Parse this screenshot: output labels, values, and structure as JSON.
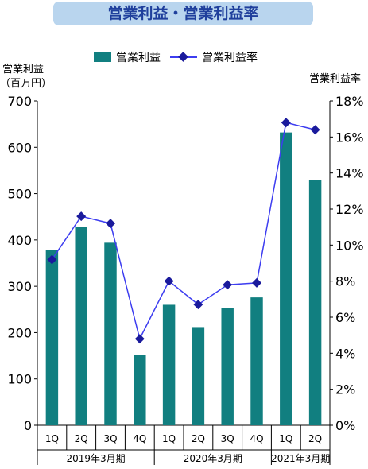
{
  "title": "営業利益・営業利益率",
  "left_axis_label": [
    "営業利益",
    "（百万円）"
  ],
  "right_axis_label": "営業利益率",
  "legend": {
    "bar": "営業利益",
    "line": "営業利益率"
  },
  "colors": {
    "bar": "#117f80",
    "line": "#3d3df0",
    "marker": "#1a1a9c",
    "title_bg": "#b9d5ee",
    "title_text": "#1f3f9c"
  },
  "chart_data": {
    "type": "bar",
    "categories": [
      "1Q",
      "2Q",
      "3Q",
      "4Q",
      "1Q",
      "2Q",
      "3Q",
      "4Q",
      "1Q",
      "2Q"
    ],
    "groups": [
      {
        "label": "2019年3月期",
        "count": 4
      },
      {
        "label": "2020年3月期",
        "count": 4
      },
      {
        "label": "2021年3月期",
        "count": 2
      }
    ],
    "series": [
      {
        "name": "営業利益",
        "type": "bar",
        "axis": "left",
        "values": [
          378,
          428,
          394,
          152,
          260,
          212,
          253,
          276,
          632,
          530
        ]
      },
      {
        "name": "営業利益率",
        "type": "line",
        "axis": "right",
        "values": [
          9.2,
          11.6,
          11.2,
          4.8,
          8.0,
          6.7,
          7.8,
          7.9,
          16.8,
          16.4
        ]
      }
    ],
    "ylim_left": [
      0,
      700
    ],
    "yticks_left": [
      0,
      100,
      200,
      300,
      400,
      500,
      600,
      700
    ],
    "ylim_right": [
      0,
      18
    ],
    "yticks_right": [
      "0%",
      "2%",
      "4%",
      "6%",
      "8%",
      "10%",
      "12%",
      "14%",
      "16%",
      "18%"
    ],
    "grid": false,
    "legend_position": "top"
  }
}
